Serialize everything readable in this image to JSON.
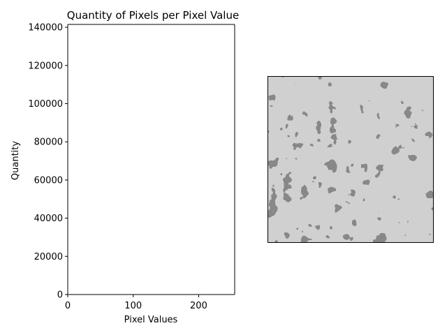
{
  "chart_data": [
    {
      "type": "bar",
      "title": "Quantity of Pixels per Pixel Value",
      "xlabel": "Pixel Values",
      "ylabel": "Quantity",
      "xlim": [
        0,
        255
      ],
      "ylim": [
        0,
        141500
      ],
      "x_ticks": [
        0,
        100,
        200
      ],
      "y_ticks": [
        0,
        20000,
        40000,
        60000,
        80000,
        100000,
        120000,
        140000
      ],
      "categories": [],
      "values": [],
      "grid": false
    },
    {
      "type": "image",
      "description_colors": {
        "dark": "#404040",
        "light": "#a0a0a0"
      }
    }
  ]
}
